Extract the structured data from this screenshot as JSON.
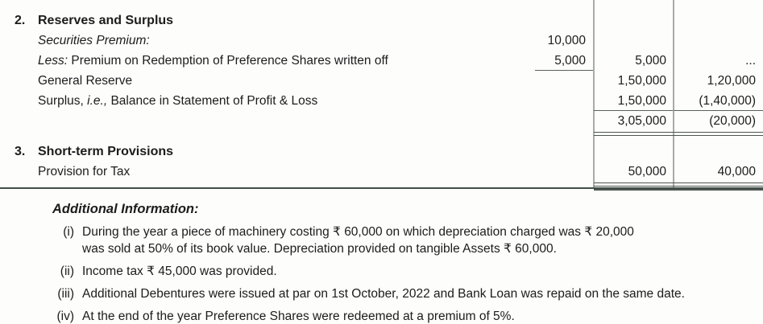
{
  "colors": {
    "ink": "#1c1c1c",
    "rule_dark": "#4d5651",
    "rule_light": "#a7ada9",
    "background": "#fdfdfc"
  },
  "statement": {
    "sections": [
      {
        "number": "2.",
        "title": "Reserves and Surplus",
        "rows": [
          {
            "label": [
              {
                "t": "Securities Premium:",
                "i": true
              }
            ],
            "working": "10,000",
            "col1": "",
            "col2": ""
          },
          {
            "label": [
              {
                "t": "Less:",
                "i": true
              },
              {
                "t": " Premium on Redemption of Preference Shares written off",
                "i": false
              }
            ],
            "working": "5,000",
            "working_underline": true,
            "col1": "5,000",
            "col2": "..."
          },
          {
            "label": [
              {
                "t": "General Reserve",
                "i": false
              }
            ],
            "working": "",
            "col1": "1,50,000",
            "col2": "1,20,000"
          },
          {
            "label": [
              {
                "t": "Surplus, ",
                "i": false
              },
              {
                "t": "i.e.,",
                "i": true
              },
              {
                "t": " Balance in Statement of Profit & Loss",
                "i": false
              }
            ],
            "working": "",
            "col1": "1,50,000",
            "col2": "(1,40,000)",
            "underline": true
          },
          {
            "label": [],
            "working": "",
            "col1": "3,05,000",
            "col2": "(20,000)"
          }
        ]
      },
      {
        "number": "3.",
        "title": "Short-term Provisions",
        "rows": [
          {
            "label": [
              {
                "t": "Provision for Tax",
                "i": false
              }
            ],
            "working": "",
            "col1": "50,000",
            "col2": "40,000"
          }
        ]
      }
    ]
  },
  "additional_info": {
    "heading": "Additional Information:",
    "items": [
      {
        "marker": "(i)",
        "text": "During the year a piece of machinery costing ₹ 60,000 on which depreciation charged was ₹ 20,000\nwas sold at 50% of its book value. Depreciation provided on tangible Assets ₹ 60,000."
      },
      {
        "marker": "(ii)",
        "text": "Income tax ₹ 45,000 was provided."
      },
      {
        "marker": "(iii)",
        "text": "Additional Debentures were issued at par on 1st October, 2022 and Bank Loan was repaid on the same date."
      },
      {
        "marker": "(iv)",
        "text": "At the end of the year Preference Shares were redeemed at a premium of 5%."
      }
    ]
  }
}
